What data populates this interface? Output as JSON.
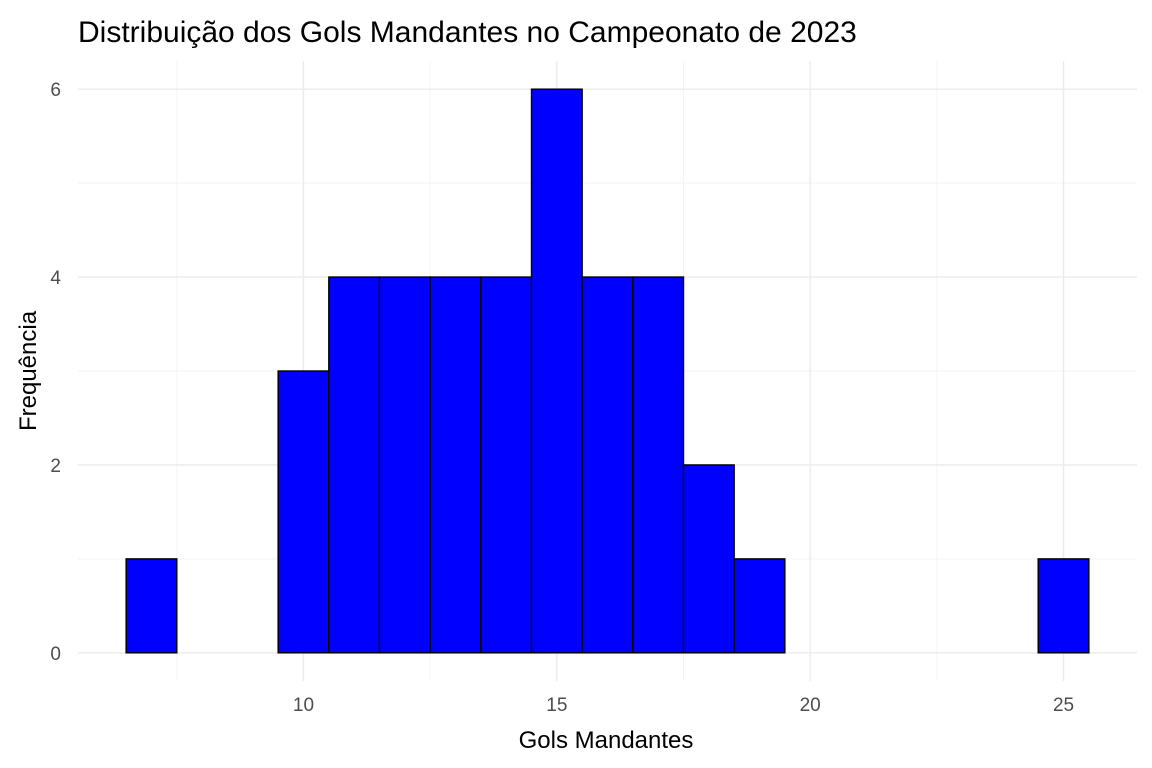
{
  "chart_data": {
    "type": "bar",
    "title": "Distribuição dos Gols Mandantes no Campeonato de 2023",
    "xlabel": "Gols Mandantes",
    "ylabel": "Frequência",
    "bin_width": 1,
    "bins": [
      {
        "x": 7,
        "count": 1
      },
      {
        "x": 8,
        "count": 0
      },
      {
        "x": 9,
        "count": 0
      },
      {
        "x": 10,
        "count": 3
      },
      {
        "x": 11,
        "count": 4
      },
      {
        "x": 12,
        "count": 4
      },
      {
        "x": 13,
        "count": 4
      },
      {
        "x": 14,
        "count": 4
      },
      {
        "x": 15,
        "count": 6
      },
      {
        "x": 16,
        "count": 4
      },
      {
        "x": 17,
        "count": 4
      },
      {
        "x": 18,
        "count": 2
      },
      {
        "x": 19,
        "count": 1
      },
      {
        "x": 20,
        "count": 0
      },
      {
        "x": 21,
        "count": 0
      },
      {
        "x": 22,
        "count": 0
      },
      {
        "x": 23,
        "count": 0
      },
      {
        "x": 24,
        "count": 0
      },
      {
        "x": 25,
        "count": 1
      }
    ],
    "xlim": [
      5.55,
      26.45
    ],
    "ylim": [
      -0.3,
      6.3
    ],
    "x_ticks": [
      10,
      15,
      20,
      25
    ],
    "y_ticks": [
      0,
      2,
      4,
      6
    ],
    "x_tick_labels": [
      "10",
      "15",
      "20",
      "25"
    ],
    "y_tick_labels": [
      "0",
      "2",
      "4",
      "6"
    ],
    "grid": true,
    "fill_color": "#0000ff",
    "edge_color": "#000000",
    "theme": "minimal"
  }
}
